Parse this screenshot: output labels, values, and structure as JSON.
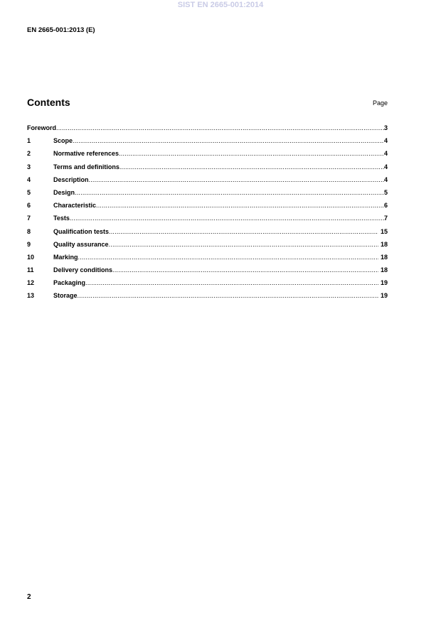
{
  "watermark": "SIST EN 2665-001:2014",
  "header": {
    "doc_id": "EN 2665-001:2013 (E)"
  },
  "contents": {
    "title": "Contents",
    "page_label": "Page",
    "entries": [
      {
        "num": "",
        "title": "Foreword",
        "page": "3"
      },
      {
        "num": "1",
        "title": "Scope ",
        "page": "4"
      },
      {
        "num": "2",
        "title": "Normative references ",
        "page": "4"
      },
      {
        "num": "3",
        "title": "Terms and definitions ",
        "page": "4"
      },
      {
        "num": "4",
        "title": "Description ",
        "page": "4"
      },
      {
        "num": "5",
        "title": "Design ",
        "page": "5"
      },
      {
        "num": "6",
        "title": "Characteristic ",
        "page": "6"
      },
      {
        "num": "7",
        "title": "Tests",
        "page": "7"
      },
      {
        "num": "8",
        "title": "Qualification tests",
        "page": " 15"
      },
      {
        "num": "9",
        "title": "Quality assurance",
        "page": " 18"
      },
      {
        "num": "10",
        "title": "Marking ",
        "page": " 18"
      },
      {
        "num": "11",
        "title": "Delivery conditions",
        "page": " 18"
      },
      {
        "num": "12",
        "title": "Packaging ",
        "page": " 19"
      },
      {
        "num": "13",
        "title": "Storage",
        "page": " 19"
      }
    ]
  },
  "footer": {
    "page_number": "2"
  }
}
